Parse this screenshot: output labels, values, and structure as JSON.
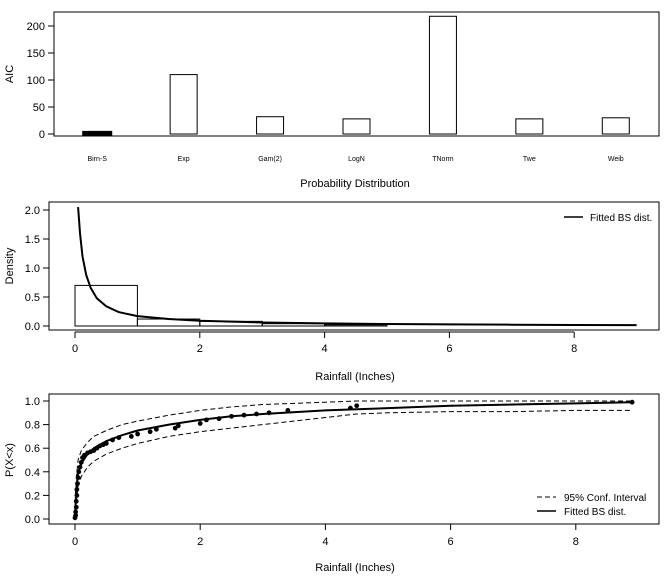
{
  "chart_data": [
    {
      "type": "bar",
      "categories": [
        "Birn-S",
        "Exp",
        "Gam(2)",
        "LogN",
        "TNorm",
        "Twe",
        "Weib"
      ],
      "values": [
        3,
        110,
        32,
        28,
        218,
        28,
        30
      ],
      "title": "",
      "xlabel": "Probability Distribution",
      "ylabel": "AIC",
      "ylim": [
        0,
        225
      ],
      "yticks": [
        "0",
        "50",
        "100",
        "150",
        "200"
      ],
      "grid": false
    },
    {
      "type": "area",
      "title": "",
      "xlabel": "Rainfall (Inches)",
      "ylabel": "Density",
      "xlim": [
        0,
        9
      ],
      "ylim": [
        0,
        2.1
      ],
      "xticks": [
        "0",
        "2",
        "4",
        "6",
        "8"
      ],
      "yticks": [
        "0.0",
        "0.5",
        "1.0",
        "1.5",
        "2.0"
      ],
      "histogram": {
        "bins": [
          [
            0,
            1
          ],
          [
            1,
            2
          ],
          [
            2,
            3
          ],
          [
            3,
            4
          ],
          [
            4,
            5
          ]
        ],
        "density": [
          0.7,
          0.12,
          0.08,
          0.04,
          0.02
        ]
      },
      "series": [
        {
          "name": "Fitted BS dist.",
          "x": [
            0.05,
            0.08,
            0.12,
            0.18,
            0.25,
            0.35,
            0.5,
            0.7,
            1.0,
            1.5,
            2.0,
            3.0,
            4.0,
            5.0,
            6.0,
            7.0,
            8.0,
            9.0
          ],
          "y": [
            2.05,
            1.6,
            1.2,
            0.88,
            0.66,
            0.48,
            0.34,
            0.24,
            0.17,
            0.12,
            0.09,
            0.06,
            0.045,
            0.035,
            0.028,
            0.022,
            0.018,
            0.015
          ]
        }
      ],
      "legend": "top-right",
      "grid": false
    },
    {
      "type": "scatter",
      "title": "",
      "xlabel": "Rainfall (Inches)",
      "ylabel": "P(X<x)",
      "xlim": [
        0,
        9
      ],
      "ylim": [
        0,
        1.05
      ],
      "xticks": [
        "0",
        "2",
        "4",
        "6",
        "8"
      ],
      "yticks": [
        "0.0",
        "0.2",
        "0.4",
        "0.6",
        "0.8",
        "1.0"
      ],
      "points": {
        "x": [
          0.0,
          0.01,
          0.01,
          0.02,
          0.02,
          0.03,
          0.03,
          0.04,
          0.05,
          0.06,
          0.08,
          0.1,
          0.12,
          0.15,
          0.2,
          0.25,
          0.3,
          0.35,
          0.4,
          0.45,
          0.5,
          0.6,
          0.7,
          0.9,
          1.0,
          1.2,
          1.3,
          1.6,
          1.65,
          2.0,
          2.1,
          2.3,
          2.5,
          2.7,
          2.9,
          3.1,
          3.4,
          4.4,
          4.5,
          8.9
        ],
        "y": [
          0.01,
          0.03,
          0.06,
          0.1,
          0.15,
          0.2,
          0.25,
          0.3,
          0.35,
          0.4,
          0.44,
          0.48,
          0.52,
          0.54,
          0.56,
          0.57,
          0.58,
          0.6,
          0.62,
          0.63,
          0.64,
          0.67,
          0.69,
          0.7,
          0.72,
          0.74,
          0.76,
          0.77,
          0.79,
          0.81,
          0.84,
          0.85,
          0.87,
          0.88,
          0.89,
          0.9,
          0.92,
          0.94,
          0.96,
          0.99
        ]
      },
      "series": [
        {
          "name": "Fitted BS dist.",
          "x": [
            0.0,
            0.02,
            0.05,
            0.1,
            0.2,
            0.3,
            0.5,
            0.75,
            1.0,
            1.5,
            2.0,
            2.5,
            3.0,
            4.0,
            5.0,
            6.0,
            7.0,
            8.0,
            8.9
          ],
          "y": [
            0.02,
            0.25,
            0.39,
            0.47,
            0.55,
            0.6,
            0.66,
            0.71,
            0.75,
            0.8,
            0.84,
            0.87,
            0.89,
            0.92,
            0.94,
            0.96,
            0.97,
            0.98,
            0.99
          ]
        },
        {
          "name": "95% Conf. Interval",
          "x": [
            0.0,
            0.02,
            0.05,
            0.1,
            0.2,
            0.3,
            0.5,
            0.75,
            1.0,
            1.5,
            2.0,
            2.5,
            3.0,
            4.0,
            4.5,
            5.0,
            6.0,
            7.0,
            8.0,
            8.9
          ],
          "y": [
            0.07,
            0.35,
            0.5,
            0.58,
            0.65,
            0.7,
            0.75,
            0.8,
            0.83,
            0.88,
            0.92,
            0.95,
            0.97,
            0.99,
            1.0,
            1.0,
            1.0,
            1.0,
            1.0,
            1.0
          ]
        },
        {
          "name": "95% Conf. Interval",
          "x": [
            0.0,
            0.02,
            0.05,
            0.1,
            0.2,
            0.3,
            0.5,
            0.75,
            1.0,
            1.5,
            2.0,
            2.5,
            3.0,
            4.0,
            4.5,
            5.0,
            6.0,
            7.0,
            8.0,
            8.9
          ],
          "y": [
            0.0,
            0.15,
            0.28,
            0.36,
            0.44,
            0.49,
            0.55,
            0.6,
            0.64,
            0.7,
            0.74,
            0.77,
            0.8,
            0.86,
            0.89,
            0.9,
            0.91,
            0.91,
            0.92,
            0.92
          ]
        }
      ],
      "legend": "bottom-right",
      "grid": false
    }
  ]
}
